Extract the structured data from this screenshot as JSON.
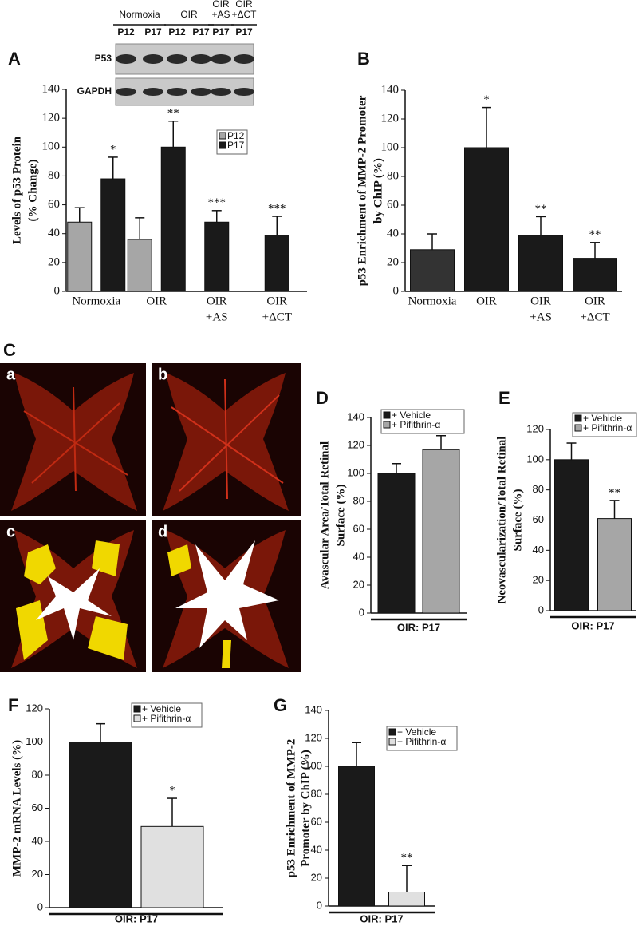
{
  "chart_data": [
    {
      "type": "bar",
      "panel": "A",
      "ylabel": [
        "Levels of p53 Protein",
        "(% Change)"
      ],
      "categories": [
        [
          "Normoxia"
        ],
        [
          "OIR"
        ],
        [
          "OIR",
          "+AS"
        ],
        [
          "OIR",
          "+ΔCT"
        ]
      ],
      "series": [
        {
          "name": "P12",
          "color": "#a6a6a6",
          "values": [
            48,
            36,
            null,
            null
          ],
          "errors": [
            10,
            15,
            null,
            null
          ]
        },
        {
          "name": "P17",
          "color": "#1a1a1a",
          "values": [
            78,
            100,
            48,
            39
          ],
          "errors": [
            15,
            18,
            8,
            13
          ],
          "marks": [
            "*",
            "**",
            "***",
            "***"
          ]
        }
      ],
      "ylim": [
        0,
        140
      ],
      "yticks": [
        0,
        20,
        40,
        60,
        80,
        100,
        120,
        140
      ]
    },
    {
      "type": "bar",
      "panel": "B",
      "ylabel": [
        "p53 Enrichment of MMP-2 Promoter",
        "by ChIP (%)"
      ],
      "categories": [
        [
          "Normoxia"
        ],
        [
          "OIR"
        ],
        [
          "OIR",
          "+AS"
        ],
        [
          "OIR",
          "+ΔCT"
        ]
      ],
      "values": [
        29,
        100,
        39,
        23
      ],
      "errors": [
        11,
        28,
        13,
        11
      ],
      "marks": [
        null,
        "*",
        "**",
        "**"
      ],
      "colors": [
        "#333333",
        "#1a1a1a",
        "#1a1a1a",
        "#1a1a1a"
      ],
      "ylim": [
        0,
        140
      ],
      "yticks": [
        0,
        20,
        40,
        60,
        80,
        100,
        120,
        140
      ]
    },
    {
      "type": "bar",
      "panel": "D",
      "ylabel": [
        "Avascular Area/Total Retinal",
        "Surface (%)"
      ],
      "categories": [
        [
          "OIR: P17"
        ]
      ],
      "series": [
        {
          "name": "+ Vehicle",
          "color": "#1a1a1a",
          "values": [
            100
          ],
          "errors": [
            7
          ]
        },
        {
          "name": "+ Pifithrin-α",
          "color": "#a6a6a6",
          "values": [
            117
          ],
          "errors": [
            10
          ]
        }
      ],
      "ylim": [
        0,
        140
      ],
      "yticks": [
        0,
        20,
        40,
        60,
        80,
        100,
        120,
        140
      ]
    },
    {
      "type": "bar",
      "panel": "E",
      "ylabel": [
        "Neovascularization/Total Retinal",
        "Surface (%)"
      ],
      "categories": [
        [
          "OIR: P17"
        ]
      ],
      "series": [
        {
          "name": "+ Vehicle",
          "color": "#1a1a1a",
          "values": [
            100
          ],
          "errors": [
            11
          ]
        },
        {
          "name": "+ Pifithrin-α",
          "color": "#a6a6a6",
          "values": [
            61
          ],
          "errors": [
            12
          ],
          "marks": [
            "**"
          ]
        }
      ],
      "ylim": [
        0,
        120
      ],
      "yticks": [
        0,
        20,
        40,
        60,
        80,
        100,
        120
      ]
    },
    {
      "type": "bar",
      "panel": "F",
      "ylabel": [
        "MMP-2  mRNA Levels (%)"
      ],
      "categories": [
        [
          "OIR: P17"
        ]
      ],
      "series": [
        {
          "name": "+ Vehicle",
          "color": "#1a1a1a",
          "values": [
            100
          ],
          "errors": [
            11
          ]
        },
        {
          "name": "+ Pifithrin-α",
          "color": "#e0e0e0",
          "values": [
            49
          ],
          "errors": [
            17
          ],
          "marks": [
            "*"
          ]
        }
      ],
      "ylim": [
        0,
        120
      ],
      "yticks": [
        0,
        20,
        40,
        60,
        80,
        100,
        120
      ]
    },
    {
      "type": "bar",
      "panel": "G",
      "ylabel": [
        "p53 Enrichment of MMP-2",
        "Promoter  by ChIP (%)"
      ],
      "categories": [
        [
          "OIR: P17"
        ]
      ],
      "series": [
        {
          "name": "+ Vehicle",
          "color": "#1a1a1a",
          "values": [
            100
          ],
          "errors": [
            17
          ]
        },
        {
          "name": "+ Pifithrin-α",
          "color": "#e0e0e0",
          "values": [
            10
          ],
          "errors": [
            19
          ],
          "marks": [
            "**"
          ]
        }
      ],
      "ylim": [
        0,
        140
      ],
      "yticks": [
        0,
        20,
        40,
        60,
        80,
        100,
        120,
        140
      ]
    }
  ],
  "blot": {
    "rows": [
      "P53",
      "GAPDH"
    ],
    "groups": [
      {
        "label": [
          "Normoxia"
        ],
        "lanes": [
          "P12",
          "P17"
        ]
      },
      {
        "label": [
          "OIR"
        ],
        "lanes": [
          "P12",
          "P17"
        ]
      },
      {
        "label": [
          "OIR",
          "+AS"
        ],
        "lanes": [
          "P17"
        ]
      },
      {
        "label": [
          "OIR",
          "+ΔCT"
        ],
        "lanes": [
          "P17"
        ]
      }
    ]
  },
  "images": {
    "panel": "C",
    "labels": [
      "a",
      "b",
      "c",
      "d"
    ]
  }
}
